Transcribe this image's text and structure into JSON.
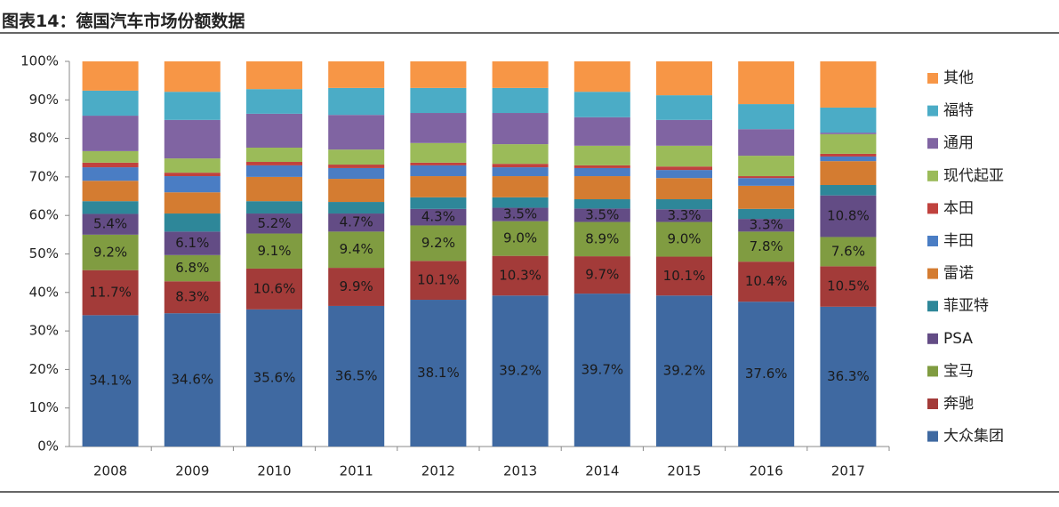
{
  "chart_data": {
    "type": "stacked_bar",
    "title": "图表14：德国汽车市场份额数据",
    "categories": [
      "2008",
      "2009",
      "2010",
      "2011",
      "2012",
      "2013",
      "2014",
      "2015",
      "2016",
      "2017"
    ],
    "ylim": [
      0,
      100
    ],
    "yticks": [
      {
        "value": 0,
        "label": "0%"
      },
      {
        "value": 10,
        "label": "10%"
      },
      {
        "value": 20,
        "label": "20%"
      },
      {
        "value": 30,
        "label": "30%"
      },
      {
        "value": 40,
        "label": "40%"
      },
      {
        "value": 50,
        "label": "50%"
      },
      {
        "value": 60,
        "label": "60%"
      },
      {
        "value": 70,
        "label": "70%"
      },
      {
        "value": 80,
        "label": "80%"
      },
      {
        "value": 90,
        "label": "90%"
      },
      {
        "value": 100,
        "label": "100%"
      }
    ],
    "legend": "right",
    "series": [
      {
        "name": "大众集团",
        "color": "#3f69a1",
        "values": [
          34.1,
          34.6,
          35.6,
          36.5,
          38.1,
          39.2,
          39.7,
          39.2,
          37.6,
          36.3
        ],
        "value_labels": [
          "34.1%",
          "34.6%",
          "35.6%",
          "36.5%",
          "38.1%",
          "39.2%",
          "39.7%",
          "39.2%",
          "37.6%",
          "36.3%"
        ]
      },
      {
        "name": "奔驰",
        "color": "#a33b39",
        "values": [
          11.7,
          8.3,
          10.6,
          9.9,
          10.1,
          10.3,
          9.7,
          10.1,
          10.4,
          10.5
        ],
        "value_labels": [
          "11.7%",
          "8.3%",
          "10.6%",
          "9.9%",
          "10.1%",
          "10.3%",
          "9.7%",
          "10.1%",
          "10.4%",
          "10.5%"
        ]
      },
      {
        "name": "宝马",
        "color": "#809c41",
        "values": [
          9.2,
          6.8,
          9.1,
          9.4,
          9.2,
          9.0,
          8.9,
          9.0,
          7.8,
          7.6
        ],
        "value_labels": [
          "9.2%",
          "6.8%",
          "9.1%",
          "9.4%",
          "9.2%",
          "9.0%",
          "8.9%",
          "9.0%",
          "7.8%",
          "7.6%"
        ]
      },
      {
        "name": "PSA",
        "color": "#634c85",
        "values": [
          5.4,
          6.1,
          5.2,
          4.7,
          4.3,
          3.5,
          3.5,
          3.3,
          3.3,
          10.8
        ],
        "value_labels": [
          "5.4%",
          "6.1%",
          "5.2%",
          "4.7%",
          "4.3%",
          "3.5%",
          "3.5%",
          "3.3%",
          "3.3%",
          "10.8%"
        ]
      },
      {
        "name": "菲亚特",
        "color": "#2e8799",
        "values": [
          3.3,
          4.7,
          3.2,
          3.0,
          3.0,
          2.7,
          2.4,
          2.6,
          2.6,
          2.7
        ]
      },
      {
        "name": "雷诺",
        "color": "#d47c31",
        "values": [
          5.3,
          5.5,
          6.3,
          6.0,
          5.5,
          5.5,
          6.0,
          5.5,
          6.0,
          6.2
        ]
      },
      {
        "name": "丰田",
        "color": "#4a7dc4",
        "values": [
          3.5,
          4.2,
          3.0,
          2.8,
          2.8,
          2.3,
          2.1,
          2.1,
          2.0,
          1.2
        ]
      },
      {
        "name": "本田",
        "color": "#c0423e",
        "values": [
          1.2,
          0.9,
          0.9,
          0.9,
          0.7,
          0.9,
          0.7,
          0.9,
          0.5,
          0.7
        ]
      },
      {
        "name": "现代起亚",
        "color": "#9bbb59",
        "values": [
          3.0,
          3.7,
          3.7,
          3.9,
          5.1,
          5.1,
          5.1,
          5.4,
          5.3,
          5.1
        ]
      },
      {
        "name": "通用",
        "color": "#8064a2",
        "values": [
          9.2,
          10.0,
          8.8,
          9.0,
          7.8,
          8.1,
          7.4,
          6.7,
          6.9,
          0.4
        ]
      },
      {
        "name": "福特",
        "color": "#4bacc6",
        "values": [
          6.5,
          7.3,
          6.4,
          7.0,
          6.5,
          6.5,
          6.6,
          6.4,
          6.5,
          6.5
        ]
      },
      {
        "name": "其他",
        "color": "#f79646",
        "values": [
          7.6,
          7.9,
          7.2,
          6.9,
          6.9,
          6.9,
          7.9,
          8.8,
          11.1,
          12.0
        ]
      }
    ]
  }
}
